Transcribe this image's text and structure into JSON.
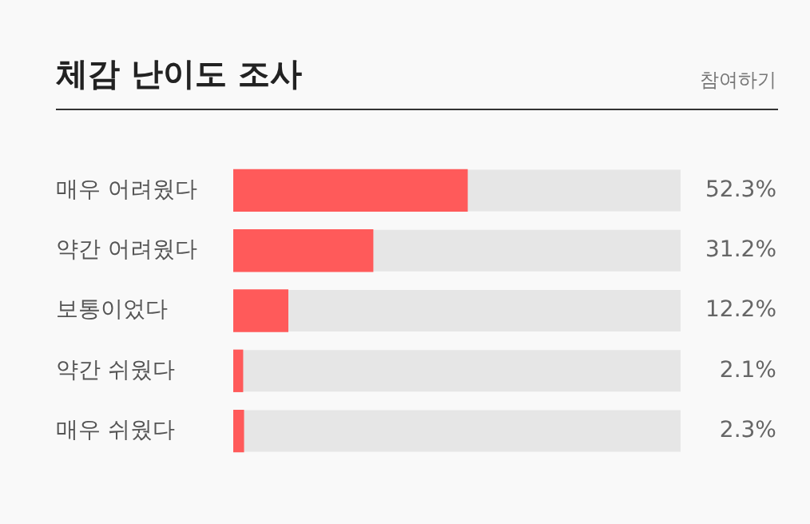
{
  "chart_data": {
    "type": "bar",
    "orientation": "horizontal",
    "title": "체감 난이도 조사",
    "annotations": [
      "참여하기"
    ],
    "categories": [
      "매우 어려웠다",
      "약간 어려웠다",
      "보통이었다",
      "약간 쉬웠다",
      "매우 쉬웠다"
    ],
    "values": [
      52.3,
      31.2,
      12.2,
      2.1,
      2.3
    ],
    "color": "#ff5a5a",
    "xlim": [
      0,
      100
    ],
    "tick_labels": "y",
    "data_labels": true,
    "value_labels": [
      "52.3%",
      "31.2%",
      "12.2%",
      "2.1%",
      "2.3%"
    ],
    "legend": false
  }
}
